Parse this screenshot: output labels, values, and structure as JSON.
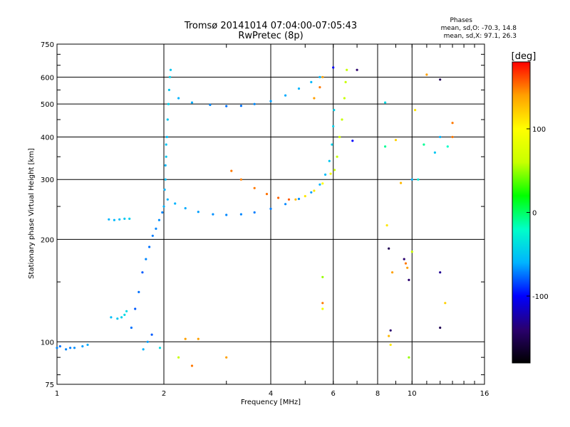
{
  "chart_data": {
    "type": "scatter",
    "title": "Tromsø 20141014 07:04:00-07:05:43",
    "subtitle": "RwPretec (8p)",
    "xlabel": "Frequency [MHz]",
    "ylabel": "Stationary phase Virtual Height [km]",
    "x_scale": "log",
    "y_scale": "log",
    "xlim": [
      1,
      16
    ],
    "ylim": [
      75,
      750
    ],
    "x_ticks": [
      1,
      2,
      4,
      6,
      8,
      10,
      16
    ],
    "x_tick_labels": [
      "1",
      "2",
      "4",
      "6",
      "8",
      "10",
      "16"
    ],
    "y_ticks": [
      75,
      100,
      200,
      300,
      400,
      500,
      600,
      750
    ],
    "y_tick_labels": [
      "75",
      "100",
      "200",
      "300",
      "400",
      "500",
      "600",
      "750"
    ],
    "grid": true,
    "info_heading": "Phases",
    "info_line1": "mean, sd,O: -70.3, 14.8",
    "info_line2": "mean, sd,X:  97.1, 26.3",
    "colorbar": {
      "label": "[deg]",
      "range": [
        -180,
        180
      ],
      "ticks": [
        100,
        0,
        -100
      ],
      "tick_labels": [
        "100",
        "0",
        "-100"
      ],
      "colors": [
        "#000000",
        "#2a006e",
        "#0000ff",
        "#00b4ff",
        "#00ffc8",
        "#00ff00",
        "#c8ff00",
        "#ffff00",
        "#ffa000",
        "#ff0000"
      ]
    },
    "series": [
      {
        "points": [
          [
            1.0,
            96,
            -70
          ],
          [
            1.06,
            95,
            -70
          ],
          [
            1.12,
            96,
            -68
          ],
          [
            1.18,
            97,
            -65
          ],
          [
            1.22,
            98,
            -62
          ],
          [
            1.02,
            97,
            -75
          ],
          [
            1.09,
            96,
            -72
          ],
          [
            1.42,
            118,
            -55
          ],
          [
            1.48,
            117,
            -50
          ],
          [
            1.52,
            118,
            -45
          ],
          [
            1.55,
            120,
            -40
          ],
          [
            1.57,
            123,
            -40
          ],
          [
            1.4,
            229,
            -60
          ],
          [
            1.45,
            228,
            -58
          ],
          [
            1.5,
            229,
            -55
          ],
          [
            1.55,
            230,
            -50
          ],
          [
            1.6,
            230,
            -45
          ],
          [
            1.62,
            110,
            -75
          ],
          [
            1.66,
            125,
            -80
          ],
          [
            1.7,
            140,
            -75
          ],
          [
            1.74,
            160,
            -80
          ],
          [
            1.78,
            175,
            -70
          ],
          [
            1.82,
            190,
            -75
          ],
          [
            1.86,
            205,
            -72
          ],
          [
            1.9,
            215,
            -70
          ],
          [
            1.94,
            228,
            -68
          ],
          [
            1.98,
            240,
            -70
          ],
          [
            1.75,
            95,
            -60
          ],
          [
            1.8,
            100,
            -65
          ],
          [
            1.85,
            105,
            -80
          ],
          [
            1.95,
            96,
            -40
          ],
          [
            2.0,
            250,
            -60
          ],
          [
            2.02,
            300,
            -55
          ],
          [
            2.03,
            350,
            -50
          ],
          [
            2.04,
            400,
            -55
          ],
          [
            2.05,
            450,
            -50
          ],
          [
            2.06,
            500,
            -45
          ],
          [
            2.07,
            550,
            -50
          ],
          [
            2.08,
            600,
            -45
          ],
          [
            2.09,
            630,
            -50
          ],
          [
            2.01,
            280,
            -60
          ],
          [
            2.02,
            330,
            -58
          ],
          [
            2.03,
            380,
            -52
          ],
          [
            2.05,
            262,
            -60
          ],
          [
            2.15,
            255,
            -60
          ],
          [
            2.3,
            247,
            -62
          ],
          [
            2.5,
            241,
            -65
          ],
          [
            2.75,
            237,
            -68
          ],
          [
            3.0,
            236,
            -70
          ],
          [
            3.3,
            237,
            -70
          ],
          [
            3.6,
            240,
            -72
          ],
          [
            4.0,
            246,
            -72
          ],
          [
            4.4,
            254,
            -70
          ],
          [
            4.8,
            263,
            -68
          ],
          [
            5.2,
            275,
            -65
          ],
          [
            5.5,
            290,
            -60
          ],
          [
            5.7,
            310,
            -55
          ],
          [
            5.85,
            340,
            -50
          ],
          [
            5.95,
            380,
            -45
          ],
          [
            6.0,
            430,
            -45
          ],
          [
            6.03,
            480,
            -45
          ],
          [
            2.2,
            520,
            -60
          ],
          [
            2.4,
            505,
            -62
          ],
          [
            2.7,
            497,
            -70
          ],
          [
            3.0,
            493,
            -75
          ],
          [
            3.3,
            494,
            -75
          ],
          [
            3.6,
            500,
            -70
          ],
          [
            4.0,
            510,
            -65
          ],
          [
            4.4,
            530,
            -62
          ],
          [
            4.8,
            555,
            -60
          ],
          [
            5.2,
            580,
            -58
          ],
          [
            5.5,
            600,
            -58
          ],
          [
            3.1,
            318,
            150
          ],
          [
            3.3,
            300,
            148
          ],
          [
            3.6,
            283,
            150
          ],
          [
            3.9,
            272,
            152
          ],
          [
            4.2,
            265,
            155
          ],
          [
            4.5,
            262,
            158
          ],
          [
            4.7,
            262,
            130
          ],
          [
            5.0,
            268,
            110
          ],
          [
            5.3,
            278,
            110
          ],
          [
            5.6,
            292,
            100
          ],
          [
            5.9,
            312,
            95
          ],
          [
            6.05,
            320,
            60
          ],
          [
            6.15,
            350,
            60
          ],
          [
            6.25,
            400,
            65
          ],
          [
            6.35,
            450,
            60
          ],
          [
            6.45,
            520,
            60
          ],
          [
            6.5,
            580,
            60
          ],
          [
            6.55,
            630,
            60
          ],
          [
            5.3,
            520,
            140
          ],
          [
            5.5,
            560,
            150
          ],
          [
            5.6,
            600,
            140
          ],
          [
            6.0,
            640,
            -100
          ],
          [
            7.0,
            630,
            -140
          ],
          [
            2.3,
            102,
            140
          ],
          [
            2.5,
            102,
            140
          ],
          [
            2.2,
            90,
            60
          ],
          [
            2.4,
            85,
            150
          ],
          [
            3.0,
            90,
            140
          ],
          [
            5.6,
            130,
            150
          ],
          [
            5.6,
            125,
            90
          ],
          [
            5.6,
            155,
            50
          ],
          [
            8.5,
            220,
            110
          ],
          [
            8.6,
            188,
            -150
          ],
          [
            8.8,
            160,
            140
          ],
          [
            8.7,
            108,
            -140
          ],
          [
            8.6,
            104,
            130
          ],
          [
            8.7,
            98,
            110
          ],
          [
            9.0,
            392,
            120
          ],
          [
            9.3,
            293,
            130
          ],
          [
            9.5,
            175,
            -140
          ],
          [
            9.6,
            170,
            150
          ],
          [
            9.7,
            165,
            140
          ],
          [
            9.8,
            152,
            -140
          ],
          [
            10.0,
            184,
            60
          ],
          [
            10.0,
            300,
            -60
          ],
          [
            10.2,
            480,
            110
          ],
          [
            9.8,
            90,
            50
          ],
          [
            12.0,
            160,
            -130
          ],
          [
            12.0,
            110,
            -150
          ],
          [
            12.4,
            130,
            120
          ],
          [
            12.6,
            375,
            -20
          ],
          [
            11.0,
            610,
            140
          ],
          [
            12.0,
            590,
            -150
          ],
          [
            13.0,
            440,
            150
          ],
          [
            13.0,
            400,
            150
          ],
          [
            8.4,
            505,
            -40
          ],
          [
            8.4,
            375,
            -10
          ],
          [
            10.4,
            300,
            -30
          ],
          [
            10.8,
            380,
            -10
          ],
          [
            11.6,
            360,
            -50
          ],
          [
            12.0,
            400,
            -60
          ],
          [
            6.8,
            390,
            -100
          ]
        ]
      }
    ]
  }
}
